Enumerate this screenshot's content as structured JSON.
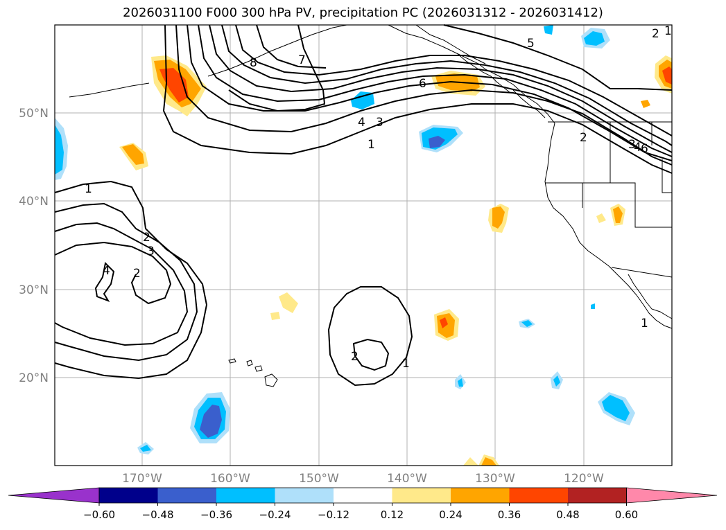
{
  "title": "2026031100 F000 300 hPa PV, precipitation PC (2026031312 - 2026031412)",
  "map": {
    "lon_labels": [
      "170°W",
      "160°W",
      "150°W",
      "140°W",
      "130°W",
      "120°W"
    ],
    "lat_labels": [
      "50°N",
      "40°N",
      "30°N",
      "20°N"
    ],
    "pv_contour_labels": [
      "1",
      "2",
      "3",
      "4",
      "5",
      "6",
      "7",
      "8",
      "1",
      "2",
      "3",
      "4",
      "1",
      "2",
      "1",
      "2",
      "3",
      "4",
      "6",
      "1",
      "2"
    ]
  },
  "colorbar": {
    "tick_labels": [
      "−0.60",
      "−0.48",
      "−0.36",
      "−0.24",
      "−0.12",
      "0.12",
      "0.24",
      "0.36",
      "0.48",
      "0.60"
    ],
    "colors": [
      "#9932cc",
      "#00008b",
      "#3a5fcd",
      "#00bfff",
      "#afe0fa",
      "#ffffff",
      "#ffe98a",
      "#ffa500",
      "#ff4500",
      "#b22222",
      "#ff88aa"
    ]
  }
}
